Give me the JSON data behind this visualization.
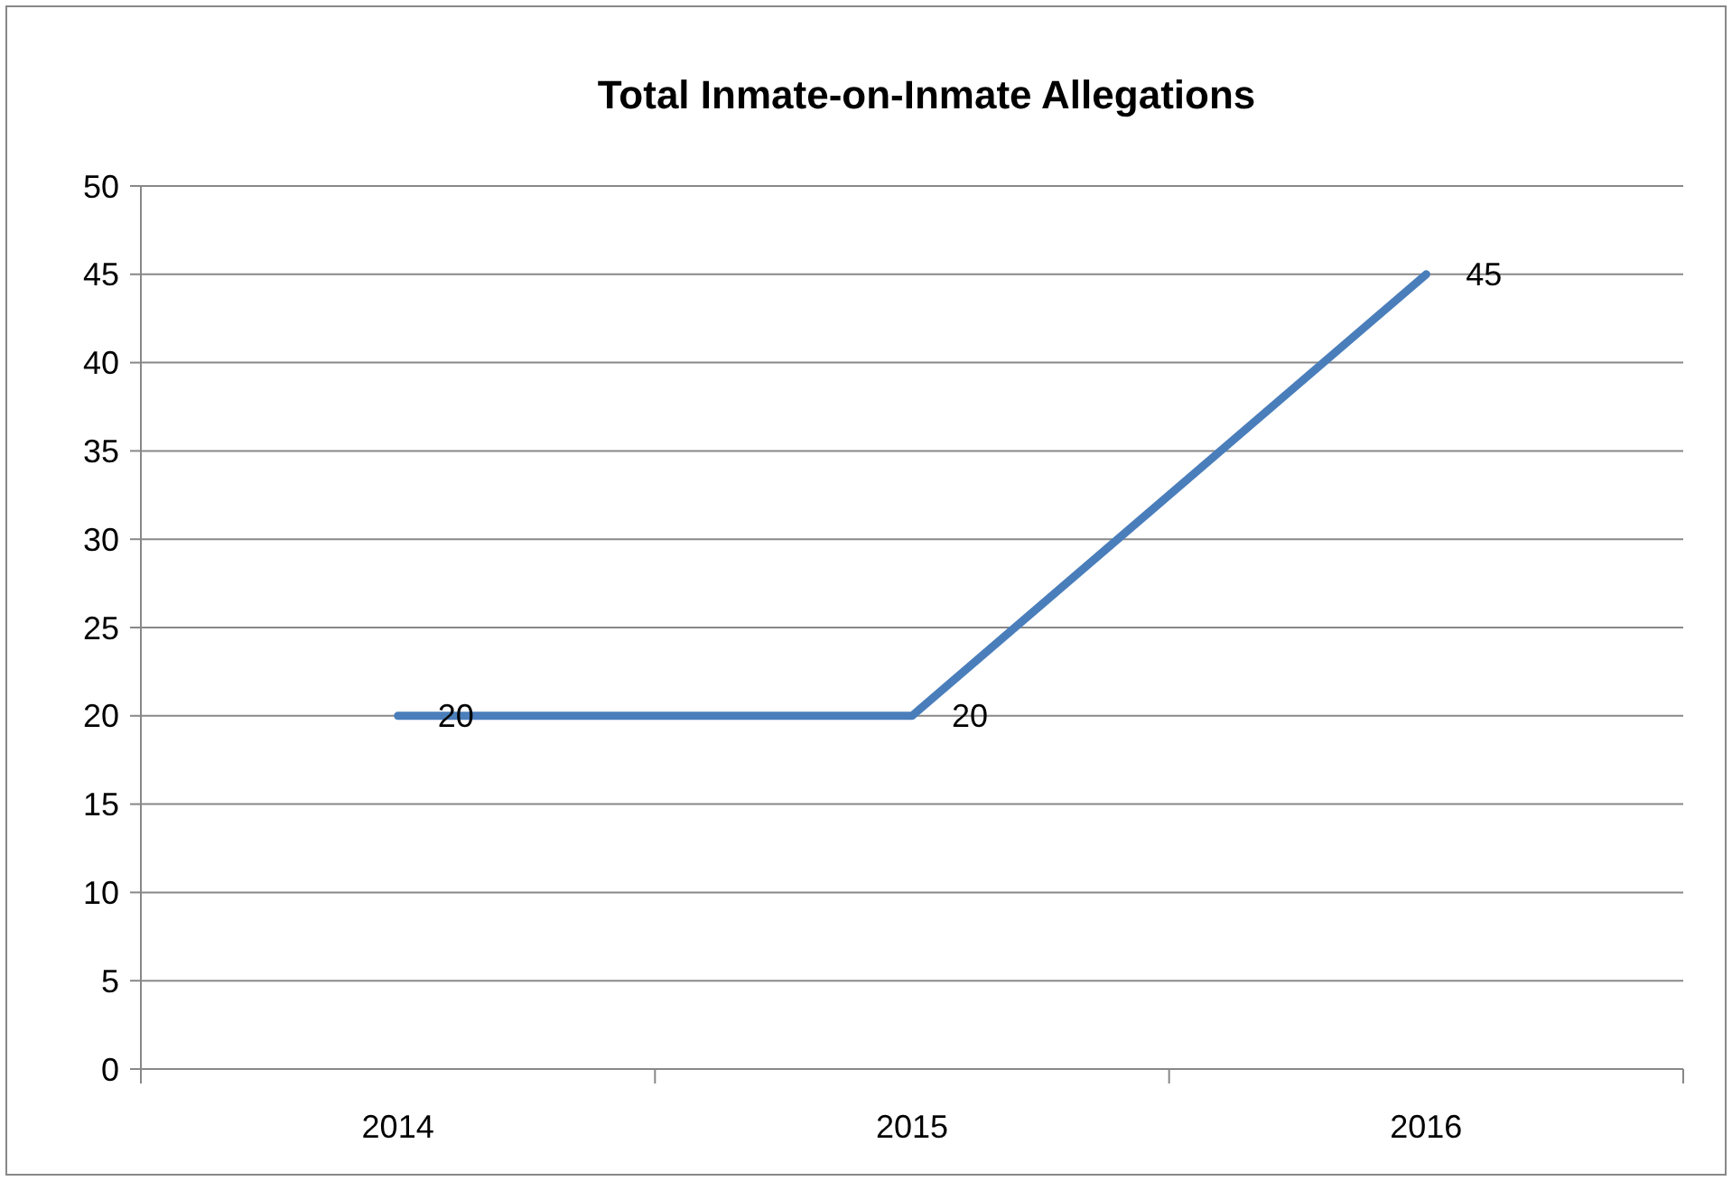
{
  "chart_data": {
    "type": "line",
    "title": "Total Inmate-on-Inmate Allegations",
    "categories": [
      "2014",
      "2015",
      "2016"
    ],
    "series": [
      {
        "color": "#4a7ebb",
        "values": [
          20,
          20,
          45
        ]
      }
    ],
    "ylim": [
      0,
      50
    ],
    "yticks": [
      0,
      5,
      10,
      15,
      20,
      25,
      30,
      35,
      40,
      45,
      50
    ],
    "grid": "y",
    "data_labels": true,
    "marker": "none",
    "line_style": "solid"
  }
}
